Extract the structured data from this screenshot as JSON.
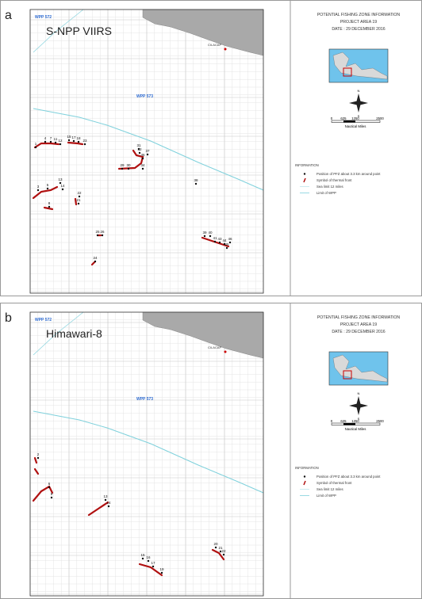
{
  "panels": [
    {
      "letter": "a",
      "sensor": "S-NPP VIIRS",
      "wpp_west": "WPP 572",
      "wpp_main": "WPP 573",
      "city": "CILACAP",
      "info": {
        "title": "POTENTIAL FISHING ZONE INFORMATION",
        "project": "PROJECT AREA 19",
        "date": "DATE : 29 DECEMBER 2016",
        "north": "N",
        "south": "S",
        "scale": [
          "0",
          "625",
          "1250",
          "2500"
        ],
        "scale_unit": "Nautical Miles",
        "legend_title": "INFORMATION",
        "legend": [
          "Position of PFZ about 3.3 km around point",
          "Symbol of thermal front",
          "Sea limit 12 miles",
          "Limit of WPP"
        ]
      },
      "points": [
        "1",
        "4",
        "7",
        "11",
        "12",
        "15",
        "17",
        "18",
        "23",
        "31",
        "32",
        "37",
        "36",
        "34",
        "29",
        "30",
        "38",
        "3",
        "5",
        "13",
        "14",
        "8",
        "22",
        "21",
        "25",
        "26",
        "24",
        "39",
        "40",
        "41",
        "43",
        "44",
        "46",
        "45"
      ]
    },
    {
      "letter": "b",
      "sensor": "Himawari-8",
      "wpp_west": "WPP 572",
      "wpp_main": "WPP 573",
      "city": "CILACAP",
      "info": {
        "title": "POTENTIAL FISHING ZONE INFORMATION",
        "project": "PROJECT AREA 19",
        "date": "DATE : 29 DECEMBER 2016",
        "north": "N",
        "south": "S",
        "scale": [
          "0",
          "625",
          "1250",
          "2500"
        ],
        "scale_unit": "Nautical Miles",
        "legend_title": "INFORMATION",
        "legend": [
          "Position of PFZ about 3.3 km around point",
          "Symbol of thermal front",
          "Sea limit 12 miles",
          "Limit of WPP"
        ]
      },
      "points": [
        "2",
        "6",
        "9",
        "13",
        "14",
        "15",
        "16",
        "17",
        "19",
        "20",
        "21",
        "22"
      ]
    }
  ]
}
